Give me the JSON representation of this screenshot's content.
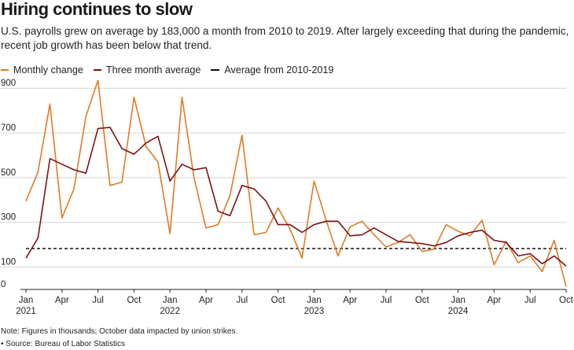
{
  "chart_data": {
    "type": "line",
    "title": "Hiring continues to slow",
    "subtitle": "U.S. payrolls grew on average by 183,000 a month from 2010 to 2019. After largely exceeding that during the pandemic, recent job growth has been below that trend.",
    "ylim": [
      0,
      950
    ],
    "yticks": [
      0,
      100,
      300,
      500,
      700,
      900
    ],
    "xtick_labels": [
      {
        "index": 0,
        "label": "Jan",
        "year": "2021"
      },
      {
        "index": 3,
        "label": "Apr"
      },
      {
        "index": 6,
        "label": "Jul"
      },
      {
        "index": 9,
        "label": "Oct"
      },
      {
        "index": 12,
        "label": "Jan",
        "year": "2022"
      },
      {
        "index": 15,
        "label": "Apr"
      },
      {
        "index": 18,
        "label": "Jul"
      },
      {
        "index": 21,
        "label": "Oct"
      },
      {
        "index": 24,
        "label": "Jan",
        "year": "2023"
      },
      {
        "index": 27,
        "label": "Apr"
      },
      {
        "index": 30,
        "label": "Jul"
      },
      {
        "index": 33,
        "label": "Oct"
      },
      {
        "index": 36,
        "label": "Jan",
        "year": "2024"
      },
      {
        "index": 39,
        "label": "Apr"
      },
      {
        "index": 42,
        "label": "Jul"
      },
      {
        "index": 45,
        "label": "Oct"
      }
    ],
    "series": [
      {
        "name": "Monthly change",
        "color": "#e07b24",
        "values": [
          395,
          525,
          830,
          320,
          450,
          775,
          935,
          465,
          480,
          860,
          640,
          570,
          250,
          860,
          500,
          275,
          290,
          420,
          690,
          245,
          255,
          365,
          270,
          140,
          485,
          310,
          150,
          280,
          305,
          245,
          190,
          210,
          245,
          170,
          180,
          290,
          260,
          240,
          310,
          110,
          215,
          120,
          150,
          80,
          220,
          12
        ]
      },
      {
        "name": "Three month average",
        "color": "#7d1116",
        "values": [
          140,
          230,
          585,
          560,
          535,
          520,
          720,
          725,
          630,
          605,
          655,
          685,
          485,
          560,
          535,
          545,
          350,
          330,
          465,
          450,
          395,
          290,
          290,
          255,
          290,
          305,
          305,
          240,
          245,
          275,
          245,
          215,
          210,
          205,
          195,
          210,
          240,
          255,
          265,
          220,
          210,
          150,
          160,
          115,
          150,
          105
        ]
      }
    ],
    "baseline": {
      "name": "Average from 2010-2019",
      "value": 183
    }
  },
  "legend": {
    "monthly": "Monthly change",
    "three_month": "Three month average",
    "average": "Average from 2010-2019"
  },
  "footer": {
    "note": "Note: Figures in thousands; October data impacted by union strikes.",
    "source": "• Source: Bureau of Labor Statistics"
  }
}
